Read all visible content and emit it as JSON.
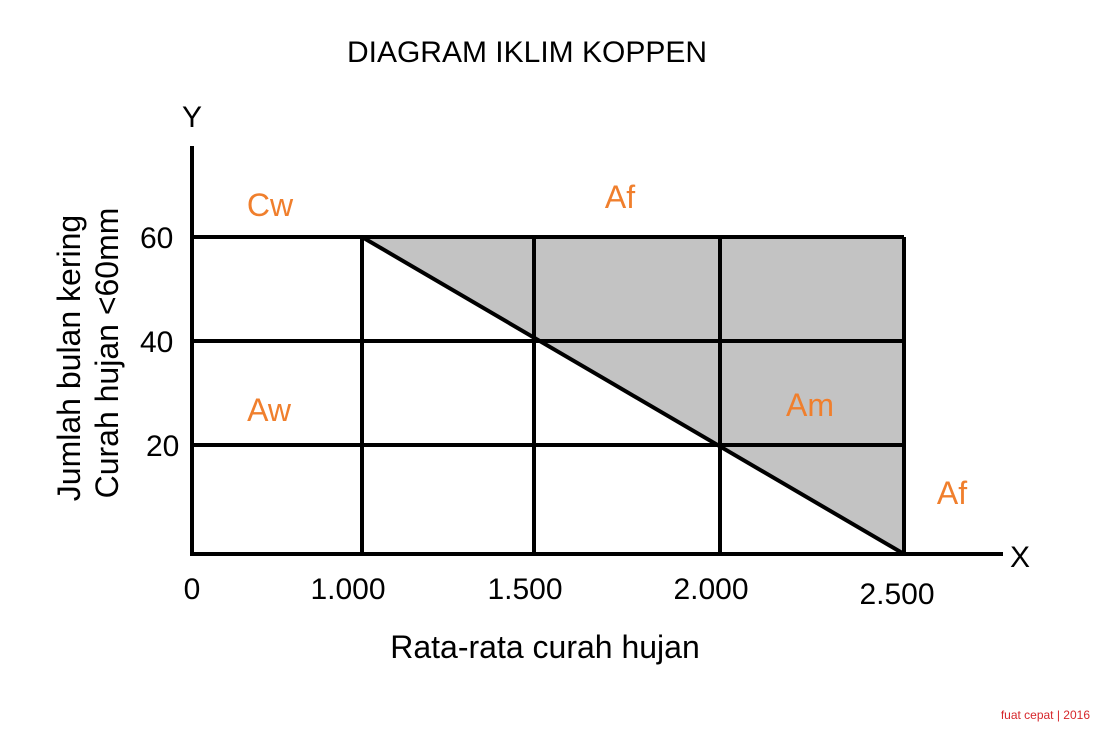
{
  "title": "DIAGRAM IKLIM KOPPEN",
  "axes": {
    "x_letter": "X",
    "y_letter": "Y",
    "x_label": "Rata-rata curah hujan",
    "y_label_line1": "Jumlah bulan kering",
    "y_label_line2": "Curah hujan <60mm"
  },
  "x_ticks": [
    "0",
    "1.000",
    "1.500",
    "2.000",
    "2.500"
  ],
  "y_ticks": [
    "60",
    "40",
    "20"
  ],
  "regions": {
    "cw": "Cw",
    "af_top": "Af",
    "aw": "Aw",
    "am": "Am",
    "af_right": "Af"
  },
  "credit": "fuat cepat | 2016",
  "colors": {
    "region_text": "#f07f2d",
    "shaded_area": "#c3c3c3",
    "lines": "#000000",
    "credit": "#d6262b"
  }
}
